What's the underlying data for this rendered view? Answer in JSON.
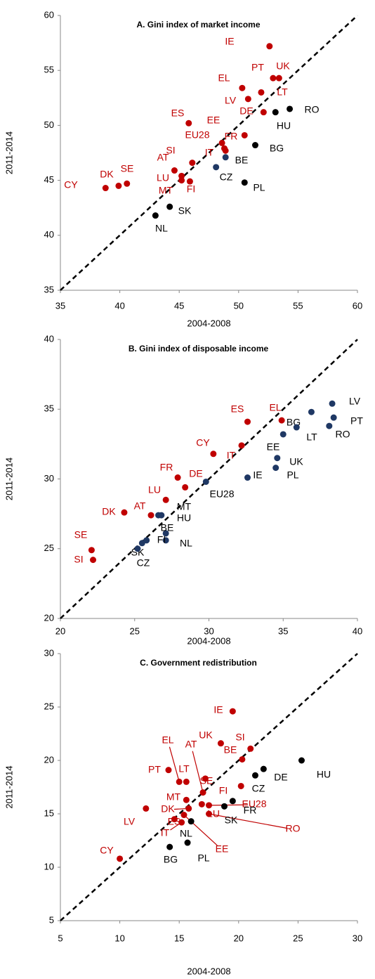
{
  "chart_data": [
    {
      "type": "scatter",
      "title": "A. Gini index of market income",
      "x_label": "2004-2008",
      "y_label": "2011-2014",
      "xlim": [
        35,
        60
      ],
      "ylim": [
        35,
        60
      ],
      "xticks": [
        35,
        40,
        45,
        50,
        55,
        60
      ],
      "yticks": [
        35,
        40,
        45,
        50,
        55,
        60
      ],
      "diagonal": true,
      "series": [
        {
          "color": "#c00000",
          "label_color": "#c00000",
          "labels": [
            "IE",
            "PT",
            "UK",
            "EL",
            "LV",
            "LT",
            "DE",
            "EE",
            "ES",
            "EU28",
            "FR",
            "SI",
            "IT",
            "AT",
            "LU",
            "MT",
            "FI",
            "SE",
            "DK",
            "CY"
          ],
          "x": [
            52.6,
            52.9,
            53.4,
            50.3,
            50.8,
            51.9,
            52.1,
            50.5,
            45.8,
            48.6,
            48.8,
            46.1,
            48.9,
            44.6,
            45.2,
            45.2,
            45.9,
            40.6,
            39.9,
            38.8
          ],
          "values": [
            57.2,
            54.3,
            54.3,
            53.4,
            52.4,
            53.0,
            51.2,
            49.1,
            50.2,
            48.4,
            47.9,
            46.6,
            47.7,
            45.9,
            45.4,
            45.0,
            44.9,
            44.7,
            44.5,
            44.3
          ]
        },
        {
          "color": "#000000",
          "label_color": "#000000",
          "labels": [
            "RO",
            "HU",
            "BG",
            "PL",
            "SK",
            "NL"
          ],
          "x": [
            54.3,
            53.1,
            51.4,
            50.5,
            44.2,
            43.0
          ],
          "values": [
            51.5,
            51.2,
            48.2,
            44.8,
            42.6,
            41.8
          ]
        },
        {
          "color": "#1f3864",
          "label_color": "#000000",
          "labels": [
            "BE",
            "CZ"
          ],
          "x": [
            48.9,
            48.1
          ],
          "values": [
            47.1,
            46.2
          ]
        }
      ]
    },
    {
      "type": "scatter",
      "title": "B. Gini index of disposable income",
      "x_label": "2004-2008",
      "y_label": "2011-2014",
      "xlim": [
        20,
        40
      ],
      "ylim": [
        20,
        40
      ],
      "xticks": [
        20,
        25,
        30,
        35,
        40
      ],
      "yticks": [
        20,
        25,
        30,
        35,
        40
      ],
      "diagonal": true,
      "series": [
        {
          "color": "#c00000",
          "label_color": "#c00000",
          "labels": [
            "ES",
            "EL",
            "IT",
            "CY",
            "FR",
            "DE",
            "LU",
            "AT",
            "DK",
            "SE",
            "SI"
          ],
          "x": [
            32.6,
            34.9,
            32.2,
            30.3,
            27.9,
            28.4,
            27.1,
            26.1,
            24.3,
            22.1,
            22.2
          ],
          "values": [
            34.1,
            34.2,
            32.4,
            31.8,
            30.1,
            29.4,
            28.5,
            27.4,
            27.6,
            24.9,
            24.2
          ]
        },
        {
          "color": "#1f3864",
          "label_color": "#000000",
          "labels": [
            "LV",
            "BG",
            "PT",
            "RO",
            "LT",
            "EE",
            "UK",
            "PL",
            "IE",
            "EU28",
            "MT",
            "HU",
            "BE",
            "NL",
            "FI",
            "SK",
            "CZ"
          ],
          "x": [
            38.3,
            36.9,
            38.4,
            38.1,
            35.9,
            35.0,
            34.6,
            34.5,
            32.6,
            29.8,
            26.8,
            26.6,
            27.1,
            27.1,
            25.8,
            25.5,
            25.2
          ],
          "values": [
            35.4,
            34.8,
            34.4,
            33.8,
            33.7,
            33.2,
            31.5,
            30.8,
            30.1,
            29.8,
            27.4,
            27.4,
            26.1,
            25.6,
            25.6,
            25.4,
            25.0
          ]
        }
      ]
    },
    {
      "type": "scatter",
      "title": "C. Government redistribution",
      "x_label": "2004-2008",
      "y_label": "2011-2014",
      "xlim": [
        5,
        30
      ],
      "ylim": [
        5,
        30
      ],
      "xticks": [
        5,
        10,
        15,
        20,
        25,
        30
      ],
      "yticks": [
        5,
        10,
        15,
        20,
        25,
        30
      ],
      "diagonal": true,
      "series": [
        {
          "color": "#c00000",
          "label_color": "#c00000",
          "labels": [
            "IE",
            "UK",
            "SI",
            "BE",
            "EL",
            "AT",
            "PT",
            "LT",
            "SE",
            "FI",
            "EU28",
            "MT",
            "DK",
            "LU",
            "RO",
            "ES",
            "IT",
            "EE",
            "LV",
            "CY"
          ],
          "x": [
            19.5,
            18.5,
            21.0,
            20.3,
            15.0,
            17.0,
            14.1,
            15.6,
            17.2,
            20.2,
            17.5,
            15.6,
            15.8,
            16.9,
            17.5,
            14.6,
            15.2,
            15.4,
            12.2,
            10.0
          ],
          "values": [
            24.6,
            21.6,
            21.1,
            20.1,
            18.0,
            17.0,
            19.1,
            18.0,
            18.3,
            17.6,
            15.8,
            16.3,
            15.5,
            15.9,
            15.0,
            14.5,
            14.2,
            14.9,
            15.5,
            10.8
          ]
        },
        {
          "color": "#000000",
          "label_color": "#000000",
          "labels": [
            "HU",
            "DE",
            "CZ",
            "FR",
            "SK",
            "NL",
            "BG",
            "PL"
          ],
          "x": [
            25.3,
            22.1,
            21.4,
            19.5,
            18.8,
            16.0,
            14.2,
            15.7
          ],
          "values": [
            20.0,
            19.2,
            18.6,
            16.2,
            15.7,
            14.3,
            11.9,
            12.3
          ]
        }
      ]
    }
  ]
}
